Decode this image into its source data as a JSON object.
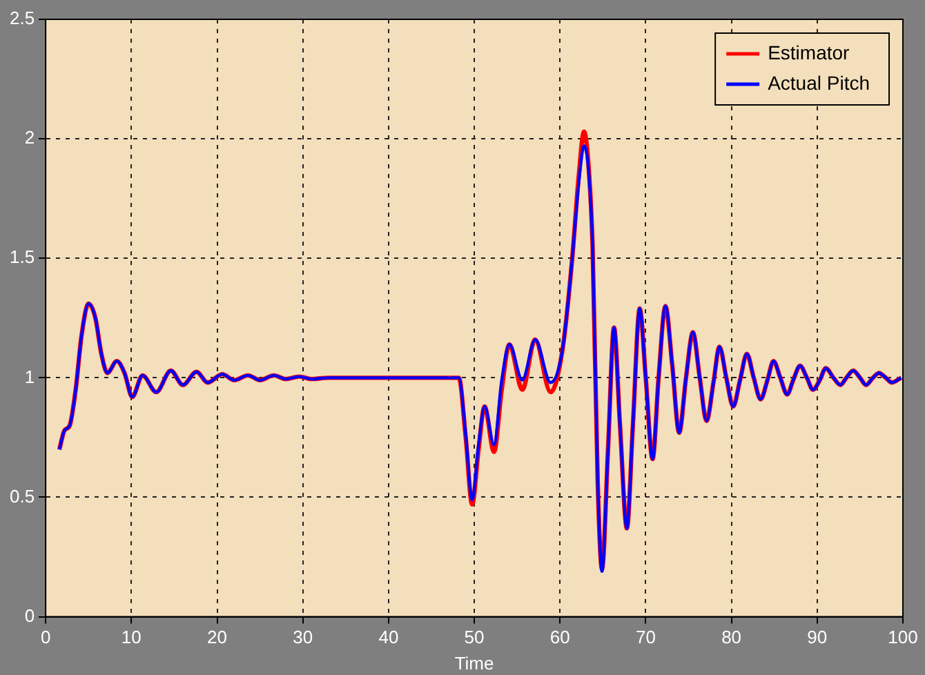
{
  "chart_data": {
    "type": "line",
    "xlabel": "Time",
    "xlim": [
      0,
      100
    ],
    "ylim": [
      0,
      2.5
    ],
    "xticks": [
      0,
      10,
      20,
      30,
      40,
      50,
      60,
      70,
      80,
      90,
      100
    ],
    "yticks": [
      0,
      0.5,
      1,
      1.5,
      2,
      2.5
    ],
    "grid": true,
    "legend": "top right",
    "line_style": "solid",
    "marker": "none",
    "series": [
      {
        "name": "Estimator",
        "color": "#ff0000",
        "x": [
          1.6,
          2.2,
          2.8,
          3.5,
          4.2,
          5,
          5.8,
          6.5,
          7.2,
          8.3,
          9.2,
          10.1,
          11.3,
          12.9,
          14.6,
          16,
          17.6,
          18.9,
          20.6,
          22,
          23.6,
          25,
          26.6,
          28,
          29.6,
          31,
          33,
          36,
          40,
          44,
          48.2,
          49,
          49.75,
          50.5,
          51.2,
          52.3,
          53.2,
          54.1,
          55.6,
          57.1,
          58.9,
          60.3,
          61.4,
          62.2,
          62.8,
          63.3,
          63.8,
          64.4,
          64.9,
          65.6,
          66.3,
          67,
          67.8,
          68.5,
          69.3,
          70,
          70.8,
          71.5,
          72.3,
          73.1,
          73.9,
          74.7,
          75.5,
          76.3,
          77.1,
          77.9,
          78.6,
          79.4,
          80.2,
          81,
          81.8,
          82.6,
          83.4,
          84.2,
          84.9,
          85.7,
          86.5,
          87.2,
          88,
          88.8,
          89.5,
          90.3,
          91,
          91.9,
          92.7,
          93.4,
          94.2,
          95,
          95.7,
          96.5,
          97.2,
          98,
          98.7,
          99.8
        ],
        "values": [
          0.7,
          0.78,
          0.8,
          0.95,
          1.18,
          1.31,
          1.25,
          1.1,
          1.02,
          1.07,
          1.02,
          0.92,
          1.01,
          0.94,
          1.03,
          0.97,
          1.025,
          0.98,
          1.015,
          0.99,
          1.01,
          0.99,
          1.01,
          0.995,
          1.005,
          0.995,
          1.0,
          1.0,
          1.0,
          1.0,
          1.0,
          0.75,
          0.47,
          0.7,
          0.88,
          0.69,
          0.95,
          1.14,
          0.95,
          1.16,
          0.94,
          1.12,
          1.49,
          1.85,
          2.03,
          1.9,
          1.55,
          0.56,
          0.2,
          0.7,
          1.21,
          0.8,
          0.37,
          0.8,
          1.29,
          1.0,
          0.66,
          1.0,
          1.3,
          1.05,
          0.77,
          1.0,
          1.19,
          1.0,
          0.82,
          0.98,
          1.13,
          1.0,
          0.88,
          0.99,
          1.1,
          1.0,
          0.91,
          0.99,
          1.07,
          1.0,
          0.93,
          0.99,
          1.05,
          1.0,
          0.95,
          0.99,
          1.04,
          1.0,
          0.97,
          1.0,
          1.03,
          1.0,
          0.97,
          1.0,
          1.02,
          1.0,
          0.98,
          1.0
        ]
      },
      {
        "name": "Actual Pitch",
        "color": "#0000ff",
        "x": [
          1.6,
          2.2,
          2.8,
          3.5,
          4.2,
          5,
          5.8,
          6.5,
          7.2,
          8.3,
          9.2,
          10.1,
          11.3,
          12.9,
          14.6,
          16,
          17.6,
          18.9,
          20.6,
          22,
          23.6,
          25,
          26.6,
          28,
          29.6,
          31,
          33,
          36,
          40,
          44,
          48.2,
          49,
          49.75,
          50.5,
          51.2,
          52.3,
          53.2,
          54.1,
          55.6,
          57.1,
          58.9,
          60.3,
          61.4,
          62.2,
          62.8,
          63.3,
          63.8,
          64.4,
          64.9,
          65.6,
          66.3,
          67,
          67.8,
          68.5,
          69.3,
          70,
          70.8,
          71.5,
          72.3,
          73.1,
          73.9,
          74.7,
          75.5,
          76.3,
          77.1,
          77.9,
          78.6,
          79.4,
          80.2,
          81,
          81.8,
          82.6,
          83.4,
          84.2,
          84.9,
          85.7,
          86.5,
          87.2,
          88,
          88.8,
          89.5,
          90.3,
          91,
          91.9,
          92.7,
          93.4,
          94.2,
          95,
          95.7,
          96.5,
          97.2,
          98,
          98.7,
          99.8
        ],
        "values": [
          0.7,
          0.78,
          0.8,
          0.95,
          1.18,
          1.31,
          1.25,
          1.1,
          1.02,
          1.07,
          1.02,
          0.92,
          1.01,
          0.94,
          1.03,
          0.97,
          1.025,
          0.98,
          1.015,
          0.99,
          1.01,
          0.99,
          1.01,
          0.995,
          1.005,
          0.995,
          1.0,
          1.0,
          1.0,
          1.0,
          1.0,
          0.76,
          0.49,
          0.72,
          0.88,
          0.72,
          0.99,
          1.14,
          0.99,
          1.16,
          0.98,
          1.12,
          1.49,
          1.82,
          1.97,
          1.88,
          1.55,
          0.56,
          0.19,
          0.7,
          1.21,
          0.8,
          0.37,
          0.8,
          1.29,
          1.0,
          0.66,
          1.0,
          1.3,
          1.05,
          0.77,
          1.0,
          1.19,
          1.0,
          0.82,
          0.98,
          1.13,
          1.0,
          0.88,
          0.99,
          1.1,
          1.0,
          0.91,
          0.99,
          1.07,
          1.0,
          0.93,
          0.99,
          1.05,
          1.0,
          0.95,
          0.99,
          1.04,
          1.0,
          0.97,
          1.0,
          1.03,
          1.0,
          0.97,
          1.0,
          1.02,
          1.0,
          0.98,
          1.0
        ]
      }
    ]
  }
}
